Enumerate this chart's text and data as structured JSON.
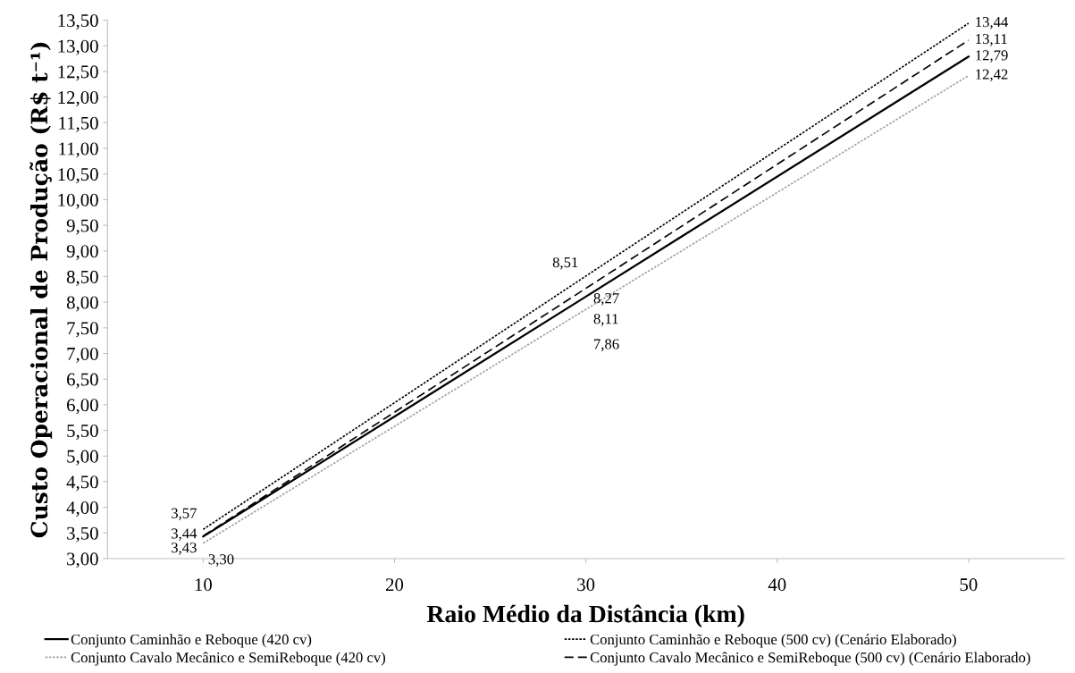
{
  "chart_data": {
    "type": "line",
    "xlabel": "Raio Médio da Distância (km)",
    "ylabel": "Custo Operacional de Produção (R$ t⁻¹)",
    "x": [
      10,
      30,
      50
    ],
    "series": [
      {
        "name": "Conjunto Caminhão e Reboque (420 cv)",
        "color": "#000000",
        "line_style": "solid",
        "values": [
          3.43,
          8.11,
          12.79
        ],
        "value_labels": [
          "3,43",
          "8,11",
          "12,79"
        ]
      },
      {
        "name": "Conjunto Cavalo Mecânico e SemiReboque (420 cv)",
        "color": "#a0a0a0",
        "line_style": "dotted",
        "values": [
          3.3,
          7.86,
          12.42
        ],
        "value_labels": [
          "3,30",
          "7,86",
          "12,42"
        ]
      },
      {
        "name": "Conjunto Caminhão e Reboque (500 cv) (Cenário Elaborado)",
        "color": "#000000",
        "line_style": "dotted",
        "values": [
          3.57,
          8.51,
          13.44
        ],
        "value_labels": [
          "3,57",
          "8,51",
          "13,44"
        ]
      },
      {
        "name": "Conjunto Cavalo Mecânico e SemiReboque (500 cv) (Cenário Elaborado)",
        "color": "#000000",
        "line_style": "dashed",
        "values": [
          3.44,
          8.27,
          13.11
        ],
        "value_labels": [
          "3,44",
          "8,27",
          "13,11"
        ]
      }
    ],
    "xlim": [
      5,
      55
    ],
    "xticks": [
      10,
      20,
      30,
      40,
      50
    ],
    "ylim": [
      3.0,
      13.5
    ],
    "yticks": [
      {
        "value": 3.0,
        "label": "3,00"
      },
      {
        "value": 3.5,
        "label": "3,50"
      },
      {
        "value": 4.0,
        "label": "4,00"
      },
      {
        "value": 4.5,
        "label": "4,50"
      },
      {
        "value": 5.0,
        "label": "5,00"
      },
      {
        "value": 5.5,
        "label": "5,50"
      },
      {
        "value": 6.0,
        "label": "6,00"
      },
      {
        "value": 6.5,
        "label": "6,50"
      },
      {
        "value": 7.0,
        "label": "7,00"
      },
      {
        "value": 7.5,
        "label": "7,50"
      },
      {
        "value": 8.0,
        "label": "8,00"
      },
      {
        "value": 8.5,
        "label": "8,50"
      },
      {
        "value": 9.0,
        "label": "9,00"
      },
      {
        "value": 9.5,
        "label": "9,50"
      },
      {
        "value": 10.0,
        "label": "10,00"
      },
      {
        "value": 10.5,
        "label": "10,50"
      },
      {
        "value": 11.0,
        "label": "11,00"
      },
      {
        "value": 11.5,
        "label": "11,50"
      },
      {
        "value": 12.0,
        "label": "12,00"
      },
      {
        "value": 12.5,
        "label": "12,50"
      },
      {
        "value": 13.0,
        "label": "13,00"
      },
      {
        "value": 13.5,
        "label": "13,50"
      }
    ],
    "grid": false,
    "legend": "bottom",
    "marker": "none"
  }
}
